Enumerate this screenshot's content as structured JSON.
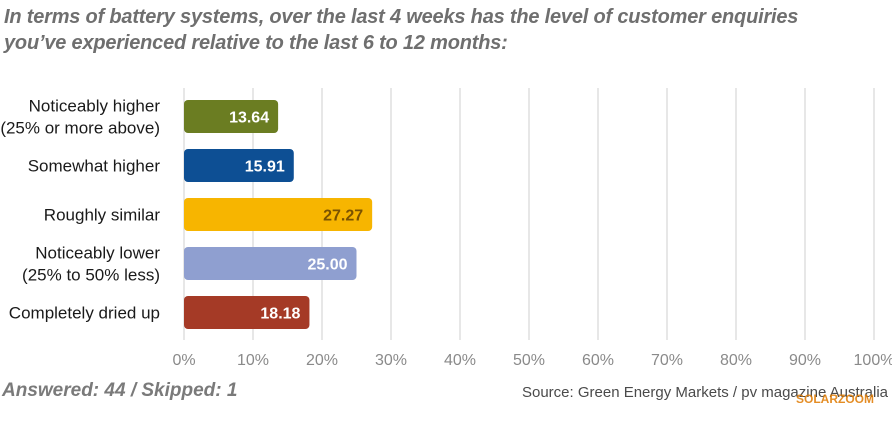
{
  "title": "In terms of battery systems, over the last 4 weeks has the level of customer enquiries you’ve experienced relative to the last 6 to 12 months:",
  "footer": {
    "answered": "Answered: 44 / Skipped: 1",
    "source": "Source: Green Energy Markets / pv magazine Australia",
    "watermark": "SOLARZOOM"
  },
  "chart_data": {
    "type": "bar",
    "orientation": "horizontal",
    "categories": [
      [
        "Noticeably higher",
        "(25% or more above)"
      ],
      [
        "Somewhat higher"
      ],
      [
        "Roughly similar"
      ],
      [
        "Noticeably lower",
        "(25% to 50% less)"
      ],
      [
        "Completely dried up"
      ]
    ],
    "values": [
      13.64,
      15.91,
      27.27,
      25.0,
      18.18
    ],
    "value_labels": [
      "13.64",
      "15.91",
      "27.27",
      "25.00",
      "18.18"
    ],
    "colors": [
      "#6b7d22",
      "#0d4f94",
      "#f7b500",
      "#8f9fd0",
      "#a53a26"
    ],
    "label_colors": [
      "#ffffff",
      "#ffffff",
      "#7a5200",
      "#ffffff",
      "#ffffff"
    ],
    "xlim": [
      0,
      100
    ],
    "xticks": [
      "0%",
      "10%",
      "20%",
      "30%",
      "40%",
      "50%",
      "60%",
      "70%",
      "80%",
      "90%",
      "100%"
    ],
    "grid": true
  }
}
